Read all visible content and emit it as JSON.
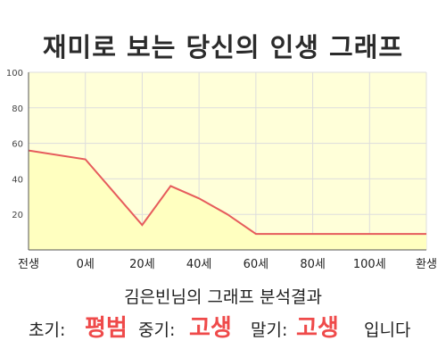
{
  "colors": {
    "plot_bg": "#ffffd9",
    "area_fill": "#ffffc0",
    "line": "#e65c5c",
    "grid": "#dddddd",
    "axis": "#555555",
    "highlight": "#ef4a4a"
  },
  "chart_data": {
    "type": "area",
    "title": "재미로 보는 당신의 인생 그래프",
    "x_tick_labels": [
      "전생",
      "0세",
      "20세",
      "40세",
      "60세",
      "80세",
      "100세",
      "환생"
    ],
    "y_ticks": [
      20,
      40,
      60,
      80,
      100
    ],
    "ylim": [
      0,
      100
    ],
    "grid": true,
    "series": [
      {
        "points": [
          {
            "x": "전생",
            "y": 56
          },
          {
            "x": "0세",
            "y": 51
          },
          {
            "x": "20세",
            "y": 14
          },
          {
            "x": "30세",
            "y": 36
          },
          {
            "x": "40세",
            "y": 29
          },
          {
            "x": "50세",
            "y": 20
          },
          {
            "x": "60세",
            "y": 9
          },
          {
            "x": "80세",
            "y": 9
          },
          {
            "x": "100세",
            "y": 9
          },
          {
            "x": "환생",
            "y": 9
          }
        ]
      }
    ]
  },
  "result": {
    "caption": "김은빈님의 그래프 분석결과",
    "early_label": "초기:",
    "early_value": "평범",
    "mid_label": "중기:",
    "mid_value": "고생",
    "late_label": "말기:",
    "late_value": "고생",
    "suffix": "입니다"
  }
}
